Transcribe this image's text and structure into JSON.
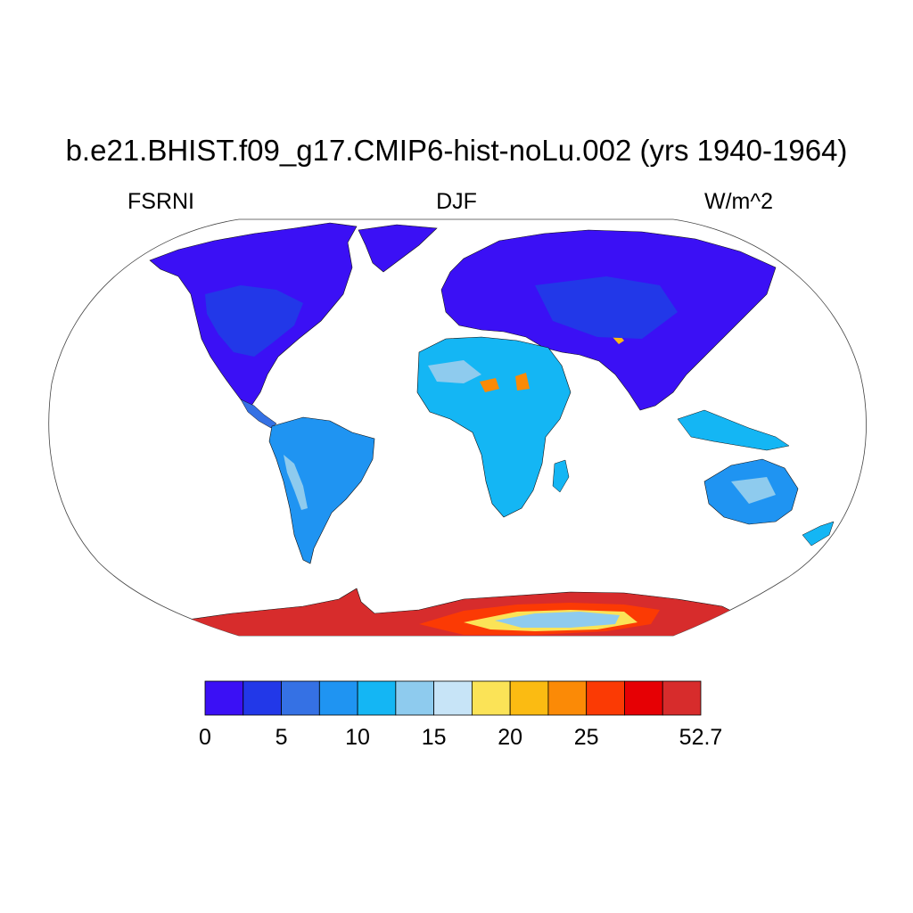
{
  "title": "b.e21.BHIST.f09_g17.CMIP6-hist-noLu.002 (yrs 1940-1964)",
  "left_string": "FSRNI",
  "center_string": "DJF",
  "right_string": "W/m^2",
  "colorbar": {
    "colors": [
      "#3b10f5",
      "#2238e8",
      "#3571e4",
      "#1f94f2",
      "#14b6f4",
      "#8ecbee",
      "#c7e4f7",
      "#fbe357",
      "#fbbb12",
      "#fb8a06",
      "#fb3a04",
      "#e60004",
      "#d72c2c"
    ],
    "labels": [
      {
        "text": "0",
        "boundary": 0
      },
      {
        "text": "5",
        "boundary": 2
      },
      {
        "text": "10",
        "boundary": 4
      },
      {
        "text": "15",
        "boundary": 6
      },
      {
        "text": "20",
        "boundary": 8
      },
      {
        "text": "25",
        "boundary": 10
      },
      {
        "text": "52.7",
        "boundary": 13
      }
    ]
  },
  "colors": {
    "ocean": "#ffffff",
    "land_low": "#3b10f5",
    "land_mid": "#1f94f2",
    "antarctica": "#d72c2c"
  }
}
